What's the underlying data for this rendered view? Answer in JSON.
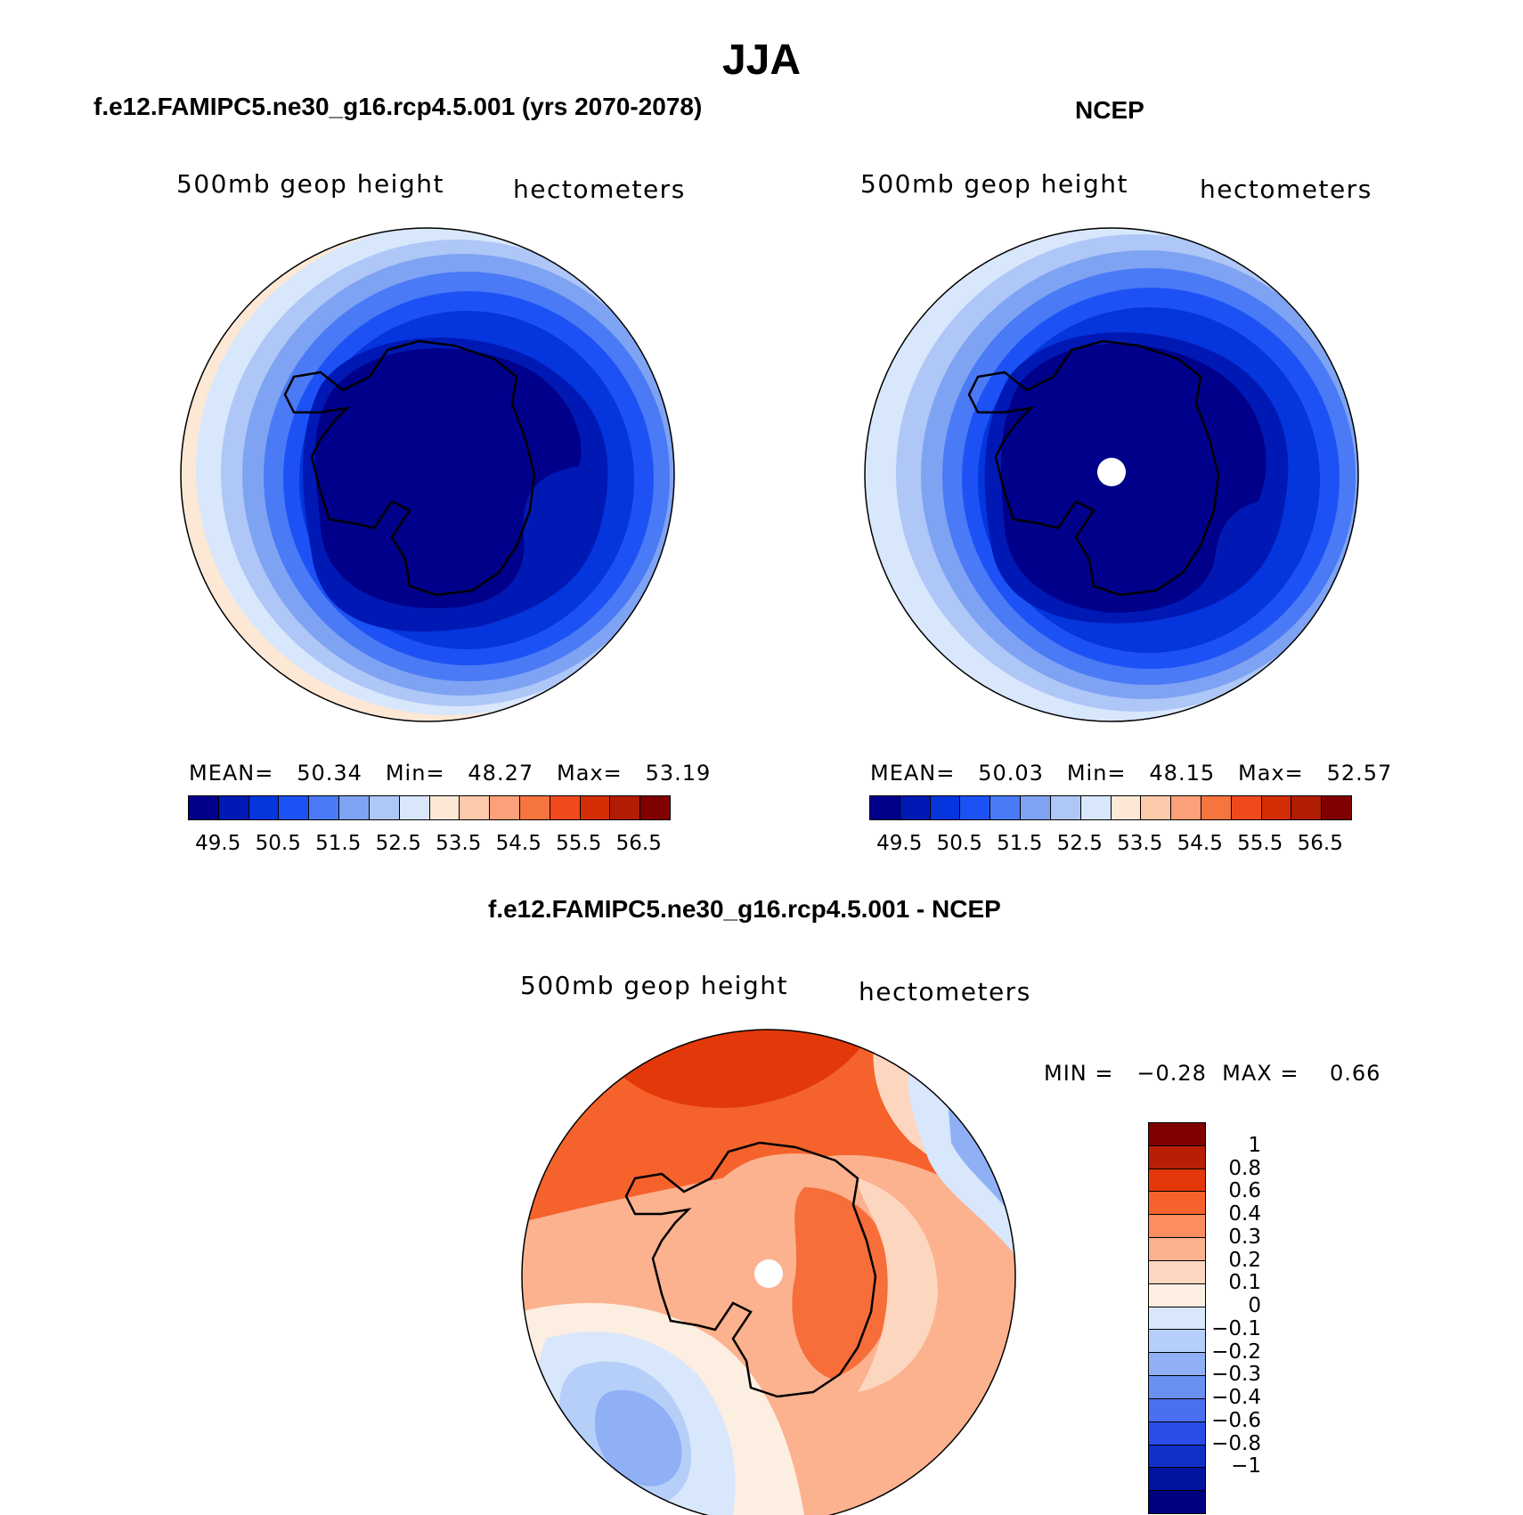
{
  "title": "JJA",
  "panels": [
    {
      "heading": "f.e12.FAMIPC5.ne30_g16.rcp4.5.001 (yrs 2070-2078)",
      "variable": "500mb geop height",
      "units": "hectometers",
      "stats": "MEAN=   50.34   Min=   48.27   Max=   53.19"
    },
    {
      "heading": "NCEP",
      "variable": "500mb geop height",
      "units": "hectometers",
      "stats": "MEAN=   50.03   Min=   48.15   Max=   52.57"
    },
    {
      "heading": "f.e12.FAMIPC5.ne30_g16.rcp4.5.001 - NCEP",
      "variable": "500mb geop height",
      "units": "hectometers",
      "stats": "MIN =   −0.28  MAX =    0.66"
    }
  ],
  "colorbar_abs": {
    "colors": [
      "#00008a",
      "#0019b4",
      "#0535dc",
      "#1c52f5",
      "#4a7af5",
      "#7fa3f3",
      "#aec7f7",
      "#d8e7fb",
      "#fde8d6",
      "#fcc9aa",
      "#fba07a",
      "#f6743e",
      "#f04a1c",
      "#d42c05",
      "#b11c02",
      "#800000"
    ],
    "labels": [
      "49.5",
      "50.5",
      "51.5",
      "52.5",
      "53.5",
      "54.5",
      "55.5",
      "56.5"
    ]
  },
  "colorbar_diff": {
    "colors": [
      "#800000",
      "#b81e05",
      "#e3390a",
      "#f6622c",
      "#fb8d5e",
      "#fcb28f",
      "#fdd6bf",
      "#fdeee2",
      "#d8e7fb",
      "#b5cff8",
      "#8fb0f5",
      "#6a90f3",
      "#4a70f0",
      "#2a4de8",
      "#1030c8",
      "#00159e",
      "#000080"
    ],
    "labels": [
      "1",
      "0.8",
      "0.6",
      "0.4",
      "0.3",
      "0.2",
      "0.1",
      "0",
      "−0.1",
      "−0.2",
      "−0.3",
      "−0.4",
      "−0.6",
      "−0.8",
      "−1"
    ]
  }
}
